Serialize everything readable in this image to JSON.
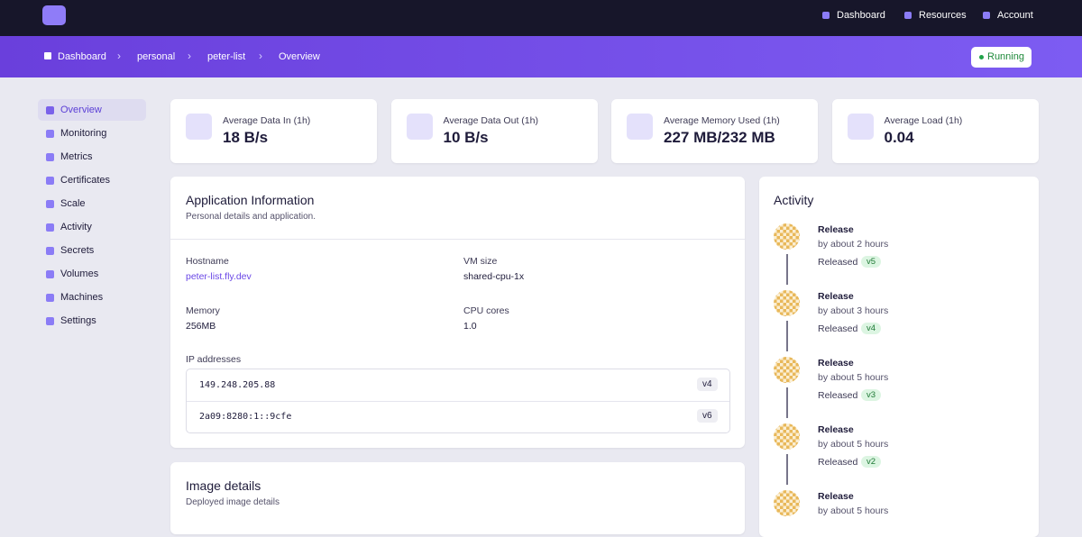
{
  "nav": {
    "links": [
      "Dashboard",
      "Resources",
      "Account"
    ]
  },
  "breadcrumb": [
    "Dashboard",
    "personal",
    "peter-list",
    "Overview"
  ],
  "status": "Running",
  "sidebar": [
    "Overview",
    "Monitoring",
    "Metrics",
    "Certificates",
    "Scale",
    "Activity",
    "Secrets",
    "Volumes",
    "Machines",
    "Settings"
  ],
  "stats": [
    {
      "label": "Average Data In (1h)",
      "value": "18 B/s"
    },
    {
      "label": "Average Data Out (1h)",
      "value": "10 B/s"
    },
    {
      "label": "Average Memory Used (1h)",
      "value": "227 MB/232 MB"
    },
    {
      "label": "Average Load (1h)",
      "value": "0.04"
    }
  ],
  "app_info": {
    "title": "Application Information",
    "subtitle": "Personal details and application.",
    "fields": [
      {
        "label": "Hostname",
        "value": "peter-list.fly.dev"
      },
      {
        "label": "VM size",
        "value": "shared-cpu-1x"
      },
      {
        "label": "Memory",
        "value": "256MB"
      },
      {
        "label": "CPU cores",
        "value": "1.0"
      }
    ],
    "ip_label": "IP addresses",
    "ips": [
      {
        "address": "149.248.205.88",
        "version": "v4"
      },
      {
        "address": "2a09:8280:1::9cfe",
        "version": "v6"
      }
    ]
  },
  "image_details": {
    "title": "Image details",
    "subtitle": "Deployed image details"
  },
  "activity": {
    "title": "Activity",
    "items": [
      {
        "title": "Release",
        "time": "by about 2 hours",
        "status": "Released",
        "version": "v5"
      },
      {
        "title": "Release",
        "time": "by about 3 hours",
        "status": "Released",
        "version": "v4"
      },
      {
        "title": "Release",
        "time": "by about 5 hours",
        "status": "Released",
        "version": "v3"
      },
      {
        "title": "Release",
        "time": "by about 5 hours",
        "status": "Released",
        "version": "v2"
      },
      {
        "title": "Release",
        "time": "by about 5 hours"
      }
    ]
  }
}
